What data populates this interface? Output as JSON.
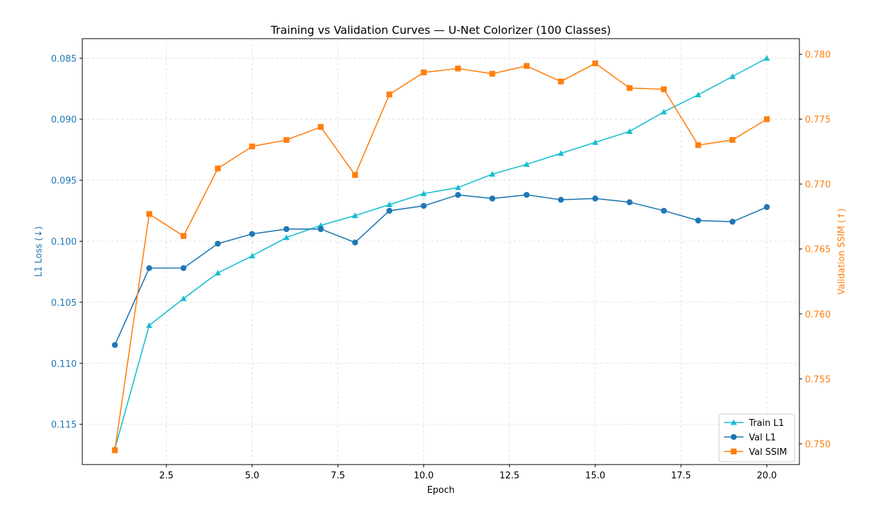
{
  "chart_data": {
    "type": "line",
    "title": "Training vs Validation Curves — U-Net Colorizer (100 Classes)",
    "xlabel": "Epoch",
    "ylabel_left": "L1 Loss (↓)",
    "ylabel_right": "Validation SSIM (↑)",
    "x": [
      1,
      2,
      3,
      4,
      5,
      6,
      7,
      8,
      9,
      10,
      11,
      12,
      13,
      14,
      15,
      16,
      17,
      18,
      19,
      20
    ],
    "xlim": [
      0.05,
      20.95
    ],
    "xticks": [
      "2.5",
      "5.0",
      "7.5",
      "10.0",
      "12.5",
      "15.0",
      "17.5",
      "20.0"
    ],
    "xtick_values": [
      2.5,
      5.0,
      7.5,
      10.0,
      12.5,
      15.0,
      17.5,
      20.0
    ],
    "y_left": {
      "inverted": true,
      "lim": [
        0.0834,
        0.1183
      ],
      "ticks": [
        "0.085",
        "0.090",
        "0.095",
        "0.100",
        "0.105",
        "0.110",
        "0.115"
      ],
      "tick_values": [
        0.085,
        0.09,
        0.095,
        0.1,
        0.105,
        0.11,
        0.115
      ],
      "color": "#1f77b4"
    },
    "y_right": {
      "lim": [
        0.7484,
        0.7812
      ],
      "ticks": [
        "0.750",
        "0.755",
        "0.760",
        "0.765",
        "0.770",
        "0.775",
        "0.780"
      ],
      "tick_values": [
        0.75,
        0.755,
        0.76,
        0.765,
        0.77,
        0.775,
        0.78
      ],
      "color": "#ff7f0e"
    },
    "grid": true,
    "legend_position": "bottom-right",
    "series": [
      {
        "name": "Train L1",
        "axis": "left",
        "color": "#17becf",
        "marker": "triangle",
        "values": [
          0.117,
          0.1069,
          0.1047,
          0.1026,
          0.1012,
          0.0997,
          0.0987,
          0.0979,
          0.097,
          0.0961,
          0.0956,
          0.0945,
          0.0937,
          0.0928,
          0.0919,
          0.091,
          0.0894,
          0.088,
          0.0865,
          0.085
        ]
      },
      {
        "name": "Val L1",
        "axis": "left",
        "color": "#1f77b4",
        "marker": "circle",
        "values": [
          0.1085,
          0.1022,
          0.1022,
          0.1002,
          0.0994,
          0.099,
          0.099,
          0.1001,
          0.0975,
          0.0971,
          0.0962,
          0.0965,
          0.0962,
          0.0966,
          0.0965,
          0.0968,
          0.0975,
          0.0983,
          0.0984,
          0.0972
        ]
      },
      {
        "name": "Val SSIM",
        "axis": "right",
        "color": "#ff7f0e",
        "marker": "square",
        "values": [
          0.7495,
          0.7677,
          0.766,
          0.7712,
          0.7729,
          0.7734,
          0.7744,
          0.7707,
          0.7769,
          0.7786,
          0.7789,
          0.7785,
          0.7791,
          0.7779,
          0.7793,
          0.7774,
          0.7773,
          0.773,
          0.7734,
          0.775
        ]
      }
    ]
  }
}
